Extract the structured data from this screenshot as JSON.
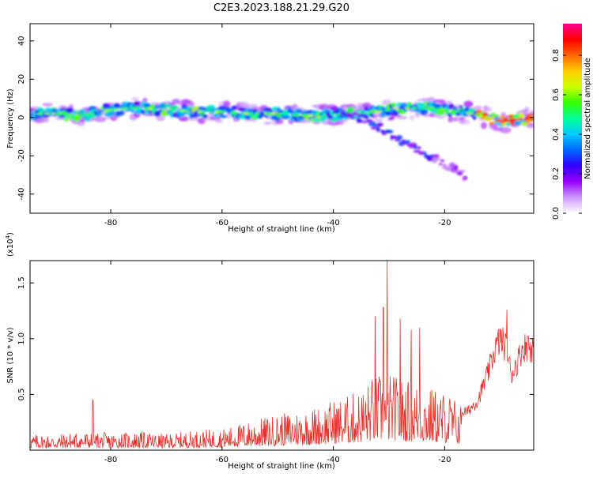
{
  "title": "C2E3.2023.188.21.29.G20",
  "chart_data": [
    {
      "type": "heatmap",
      "title": "C2E3.2023.188.21.29.G20",
      "xlabel": "Height of straight line (km)",
      "ylabel": "Frequency (Hz)",
      "xlim": [
        -94.5,
        -4
      ],
      "ylim": [
        -50,
        49
      ],
      "xticks": [
        -80,
        -60,
        -40,
        -20
      ],
      "xtick_labels": [
        "-80",
        "-60",
        "-40",
        "-20"
      ],
      "yticks": [
        40,
        20,
        0,
        -20,
        -40
      ],
      "ytick_labels": [
        "40",
        "20",
        "0",
        "-20",
        "-40"
      ],
      "trend": {
        "x": [
          -94,
          -90,
          -85,
          -80,
          -75,
          -70,
          -65,
          -60,
          -55,
          -50,
          -45,
          -40,
          -35,
          -30,
          -25,
          -20,
          -15,
          -10,
          -4
        ],
        "y": [
          2,
          2,
          1,
          4,
          5,
          4,
          3,
          3,
          2,
          2,
          1,
          1,
          2,
          4,
          5,
          4,
          2,
          -2,
          0
        ]
      },
      "branch": {
        "x": [
          -40,
          -35,
          -30,
          -28,
          -26,
          -24,
          -22,
          -20,
          -18,
          -16
        ],
        "y": [
          3,
          0,
          -8,
          -12,
          -15,
          -18,
          -21,
          -24,
          -27,
          -31
        ]
      },
      "colorbar": {
        "label": "Normalized spectral amplitude",
        "ticks": [
          0.0,
          0.2,
          0.4,
          0.6,
          0.8
        ],
        "tick_labels": [
          "0.0",
          "0.2",
          "0.4",
          "0.6",
          "0.8"
        ],
        "range": [
          0,
          0.96
        ],
        "colors": [
          "#ffffff",
          "#cc99ff",
          "#9900ff",
          "#3300ff",
          "#0066ff",
          "#00ccff",
          "#00ff99",
          "#33ff00",
          "#ccff00",
          "#ffcc00",
          "#ff6600",
          "#ff0000",
          "#ff0099"
        ]
      }
    },
    {
      "type": "line",
      "xlabel": "Height of straight line (km)",
      "ylabel": "SNR (10 * v/v)",
      "multiplier_label": "(x10",
      "multiplier_exp": "4",
      "multiplier_close": ")",
      "xlim": [
        -94.5,
        -4
      ],
      "ylim": [
        0,
        1.7
      ],
      "xticks": [
        -80,
        -60,
        -40,
        -20
      ],
      "xtick_labels": [
        "-80",
        "-60",
        "-40",
        "-20"
      ],
      "yticks": [
        0.5,
        1.0,
        1.5
      ],
      "ytick_labels": [
        "0.5",
        "1.0",
        "1.5"
      ],
      "line_color": "#e8302a",
      "envelope": {
        "x": [
          -94.5,
          -90,
          -85,
          -80,
          -75,
          -70,
          -65,
          -60,
          -55,
          -50,
          -45,
          -42,
          -40,
          -38,
          -35,
          -33,
          -31,
          -30,
          -29,
          -27,
          -25,
          -23,
          -21,
          -19,
          -17,
          -16,
          -14,
          -12,
          -11,
          -10,
          -9,
          -8,
          -7,
          -6,
          -5,
          -4
        ],
        "y": [
          0.12,
          0.12,
          0.14,
          0.13,
          0.14,
          0.12,
          0.15,
          0.16,
          0.22,
          0.27,
          0.31,
          0.34,
          0.38,
          0.4,
          0.46,
          0.55,
          0.58,
          0.58,
          0.56,
          0.53,
          0.52,
          0.48,
          0.45,
          0.43,
          0.35,
          0.34,
          0.45,
          0.72,
          0.9,
          1.0,
          0.92,
          0.68,
          0.78,
          0.92,
          0.93,
          0.92
        ]
      },
      "peaks": [
        {
          "x": -83.2,
          "y": 0.45
        },
        {
          "x": -30.3,
          "y": 1.7
        },
        {
          "x": -31.0,
          "y": 1.28
        },
        {
          "x": -32.5,
          "y": 1.2
        },
        {
          "x": -28.0,
          "y": 1.18
        },
        {
          "x": -26.0,
          "y": 1.08
        },
        {
          "x": -24.5,
          "y": 1.1
        },
        {
          "x": -8.8,
          "y": 1.26
        },
        {
          "x": -5.0,
          "y": 1.02
        }
      ]
    }
  ]
}
